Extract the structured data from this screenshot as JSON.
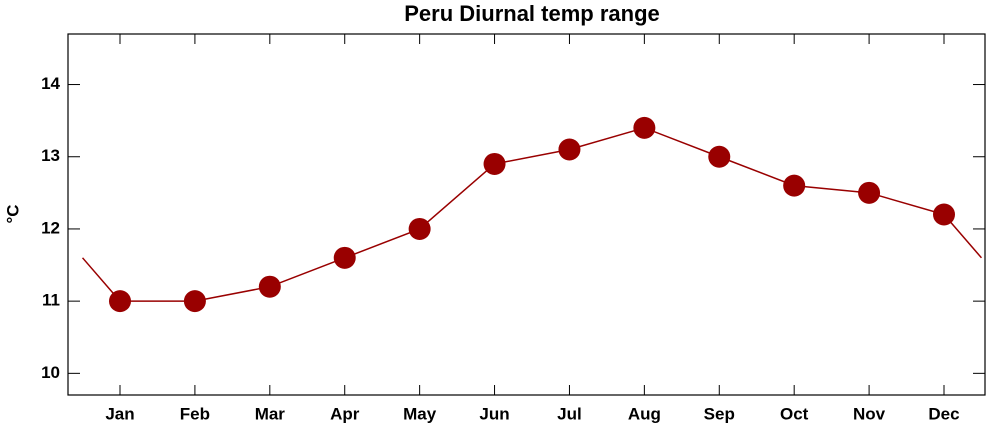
{
  "chart_data": {
    "type": "line",
    "title": "Peru Diurnal temp range",
    "ylabel": "°C",
    "categories": [
      "Jan",
      "Feb",
      "Mar",
      "Apr",
      "May",
      "Jun",
      "Jul",
      "Aug",
      "Sep",
      "Oct",
      "Nov",
      "Dec"
    ],
    "values": [
      11.0,
      11.0,
      11.2,
      11.6,
      12.0,
      12.9,
      13.1,
      13.4,
      13.0,
      12.6,
      12.5,
      12.2
    ],
    "color": "#990000",
    "ylim": [
      9.7,
      14.7
    ],
    "yticks": [
      10,
      11,
      12,
      13,
      14
    ],
    "grid": false
  }
}
